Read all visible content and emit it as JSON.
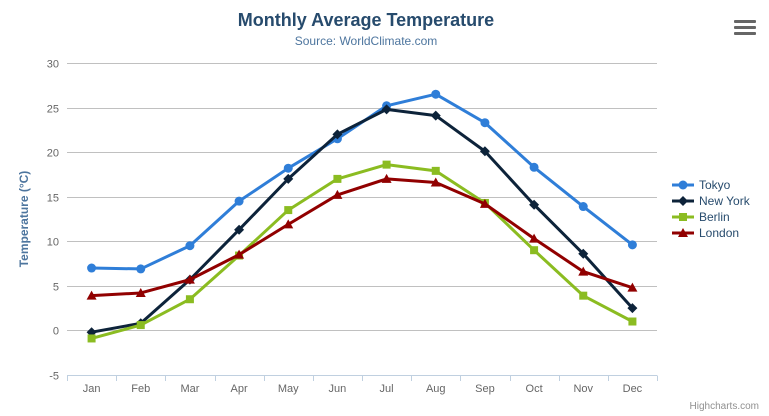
{
  "header": {
    "title": "Monthly Average Temperature",
    "subtitle": "Source: WorldClimate.com"
  },
  "credits": {
    "label": "Highcharts.com"
  },
  "chart_data": {
    "type": "line",
    "title": "Monthly Average Temperature",
    "subtitle": "Source: WorldClimate.com",
    "xlabel": "",
    "ylabel": "Temperature (°C)",
    "ylim": [
      -5,
      30
    ],
    "ytick_interval": 5,
    "grid": true,
    "legend_position": "right",
    "categories": [
      "Jan",
      "Feb",
      "Mar",
      "Apr",
      "May",
      "Jun",
      "Jul",
      "Aug",
      "Sep",
      "Oct",
      "Nov",
      "Dec"
    ],
    "series": [
      {
        "name": "Tokyo",
        "color": "#2f7ed8",
        "marker": "circle",
        "values": [
          7.0,
          6.9,
          9.5,
          14.5,
          18.2,
          21.5,
          25.2,
          26.5,
          23.3,
          18.3,
          13.9,
          9.6
        ]
      },
      {
        "name": "New York",
        "color": "#0d233a",
        "marker": "diamond",
        "values": [
          -0.2,
          0.8,
          5.7,
          11.3,
          17.0,
          22.0,
          24.8,
          24.1,
          20.1,
          14.1,
          8.6,
          2.5
        ]
      },
      {
        "name": "Berlin",
        "color": "#8bbc21",
        "marker": "square",
        "values": [
          -0.9,
          0.6,
          3.5,
          8.4,
          13.5,
          17.0,
          18.6,
          17.9,
          14.3,
          9.0,
          3.9,
          1.0
        ]
      },
      {
        "name": "London",
        "color": "#910000",
        "marker": "triangle",
        "values": [
          3.9,
          4.2,
          5.7,
          8.5,
          11.9,
          15.2,
          17.0,
          16.6,
          14.2,
          10.3,
          6.6,
          4.8
        ]
      }
    ],
    "axis_colors": {
      "grid_line": "#C0C0C0",
      "axis_line": "#C0D0E0",
      "tick_label": "#666666"
    }
  }
}
